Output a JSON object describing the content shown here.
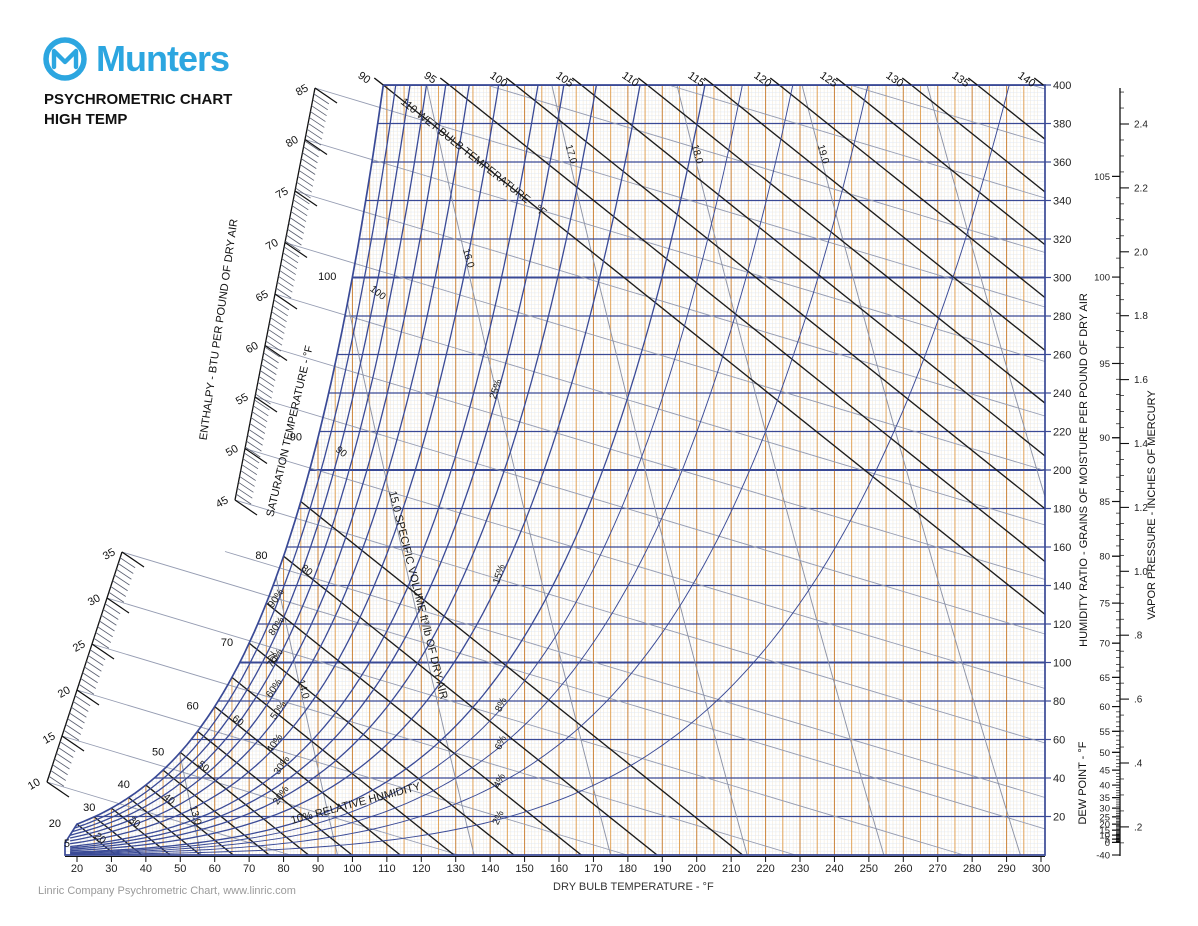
{
  "brand": {
    "logo_text": "Munters",
    "logo_color": "#2CA6E0",
    "title_line1": "PSYCHROMETRIC CHART",
    "title_line2": "HIGH TEMP"
  },
  "footer": {
    "credit": "Linric Company Psychrometric Chart, www.linric.com",
    "x_axis_title": "DRY BULB TEMPERATURE - °F"
  },
  "chart_data": {
    "type": "psychrometric",
    "x_axis": {
      "label": "DRY BULB TEMPERATURE - °F",
      "min": 20,
      "max": 300,
      "ticks": [
        20,
        30,
        40,
        50,
        60,
        70,
        80,
        90,
        100,
        110,
        120,
        130,
        140,
        150,
        160,
        170,
        180,
        190,
        200,
        210,
        220,
        230,
        240,
        250,
        260,
        270,
        280,
        290,
        300
      ]
    },
    "humidity_axis": {
      "label": "HUMIDITY RATIO - GRAINS OF MOISTURE PER POUND OF DRY AIR",
      "min": 0,
      "max": 400,
      "ticks": [
        20,
        40,
        60,
        80,
        100,
        120,
        140,
        160,
        180,
        200,
        220,
        240,
        260,
        280,
        300,
        320,
        340,
        360,
        380,
        400
      ]
    },
    "dew_point_axis": {
      "label": "DEW POINT - °F",
      "ticks": [
        105,
        100,
        95,
        90,
        85,
        80,
        75,
        70,
        65,
        60,
        55,
        50,
        45,
        40,
        35,
        30,
        25,
        20,
        15,
        10,
        5,
        0,
        -40
      ]
    },
    "vapor_pressure_axis": {
      "label": "VAPOR PRESSURE - INCHES OF MERCURY",
      "ticks": [
        2.4,
        2.2,
        2.0,
        1.8,
        1.6,
        1.4,
        1.2,
        1.0,
        0.8,
        0.6,
        0.4,
        0.2
      ]
    },
    "wet_bulb": {
      "line_label": "110 WET BULB TEMPERATURE - °F",
      "top_labels": [
        90,
        95,
        100,
        105,
        110,
        115,
        120,
        125,
        130,
        135,
        140
      ],
      "saturation_labels": [
        100,
        90,
        80,
        70,
        60,
        50,
        40,
        30,
        20
      ],
      "lines_from_saturation": [
        20,
        25,
        30,
        35,
        40,
        45,
        50,
        55,
        60,
        65,
        70,
        75,
        80,
        85
      ]
    },
    "enthalpy": {
      "label": "ENTHALPY - BTU PER POUND OF DRY AIR",
      "upper_scale_labels": [
        85,
        80,
        75,
        70,
        65,
        60,
        55,
        50,
        45
      ],
      "lower_scale_labels": [
        35,
        30,
        25,
        20,
        15,
        10
      ],
      "line_values": [
        10,
        15,
        20,
        25,
        30,
        35,
        40,
        45,
        50,
        55,
        60,
        65,
        70,
        75,
        80,
        85,
        90,
        95,
        100,
        105
      ]
    },
    "saturation": {
      "label": "SATURATION TEMPERATURE - °F",
      "labels": [
        100,
        90,
        80,
        70,
        60,
        50,
        40,
        30,
        20,
        5
      ]
    },
    "relative_humidity": {
      "text_label": "10% RELATIVE HUMIDITY",
      "curves": [
        2,
        4,
        6,
        8,
        10,
        15,
        20,
        25,
        30,
        40,
        50,
        60,
        70,
        80,
        90
      ],
      "cluster_labels": [
        "90%",
        "80%",
        "70%",
        "60%",
        "50%",
        "40%",
        "30%",
        "20%"
      ],
      "mid_labels": [
        "25%",
        "15%"
      ],
      "minor_labels": [
        "8%",
        "6%",
        "4%",
        "2%"
      ]
    },
    "specific_volume": {
      "text_label": "15.0 SPECIFIC VOLUME ft³/lb OF DRY AIR",
      "line_values": [
        13,
        14,
        15,
        16,
        17,
        18,
        19,
        20
      ],
      "point_labels": [
        "13.0",
        "14.0",
        "16.0",
        "17.0",
        "18.0",
        "19.0"
      ]
    },
    "colors": {
      "navy": "#3a4a96",
      "orange_major": "#cd8840",
      "orange_minor": "#e2a75f",
      "grid_tan": "#efe2cc",
      "grid_blue": "#dfe6f3",
      "black_line": "#1c1c1c",
      "enthalpy_gray": "#959cb2",
      "volume_gray": "#8d93a6",
      "label_dark": "#1a1a1a"
    }
  }
}
